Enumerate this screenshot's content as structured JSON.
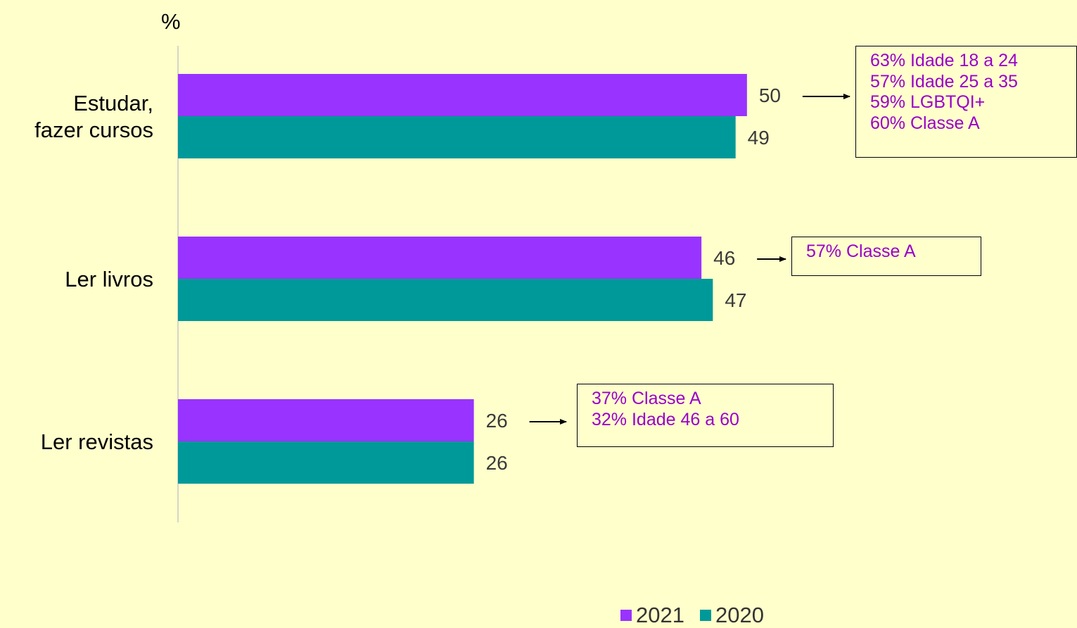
{
  "chart_data": {
    "type": "bar",
    "orientation": "horizontal",
    "unit_label": "%",
    "categories": [
      [
        "Estudar,",
        "fazer cursos"
      ],
      [
        "Ler livros"
      ],
      [
        "Ler revistas"
      ]
    ],
    "series": [
      {
        "name": "2021",
        "color": "#9933FF",
        "values": [
          50,
          46,
          26
        ]
      },
      {
        "name": "2020",
        "color": "#009999",
        "values": [
          49,
          47,
          26
        ]
      }
    ],
    "xlim": [
      0,
      79
    ],
    "grid": false,
    "legend_position": "bottom",
    "annotations": [
      {
        "category_index": 0,
        "lines": [
          "63% Idade 18 a 24",
          "57% Idade 25 a 35",
          "59% LGBTQI+",
          "60% Classe A"
        ]
      },
      {
        "category_index": 1,
        "lines": [
          "57% Classe A"
        ]
      },
      {
        "category_index": 2,
        "lines": [
          "37% Classe A",
          "32% Idade 46 a 60"
        ]
      }
    ]
  }
}
